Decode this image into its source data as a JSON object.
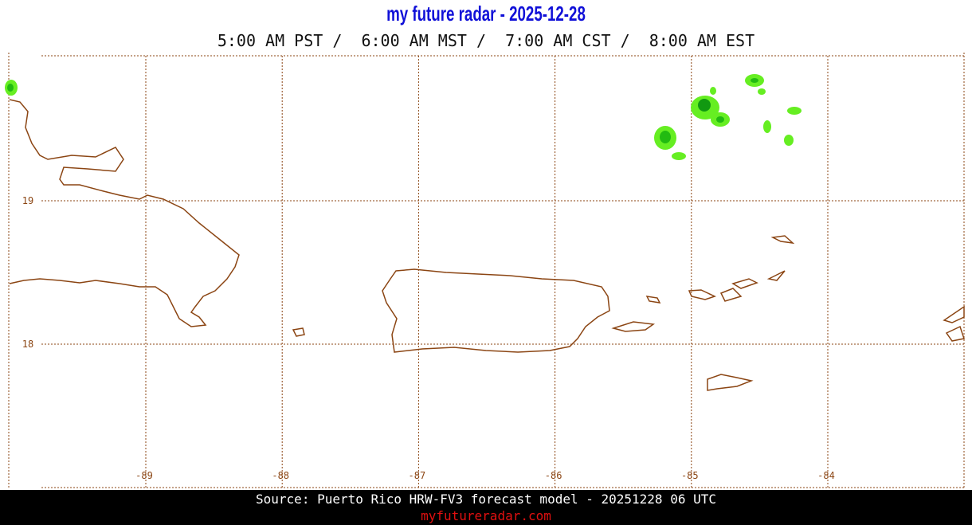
{
  "header": {
    "title": "my future radar - 2025-12-28",
    "times": "5:00 AM PST /  6:00 AM MST /  7:00 AM CST /  8:00 AM EST"
  },
  "map": {
    "lon_labels": [
      "-89",
      "-88",
      "-87",
      "-86",
      "-85",
      "-84"
    ],
    "lat_labels": [
      "19",
      "18"
    ]
  },
  "footer": {
    "source": "Source: Puerto Rico HRW-FV3 forecast model - 20251228 06 UTC",
    "site": "myfutureradar.com"
  }
}
